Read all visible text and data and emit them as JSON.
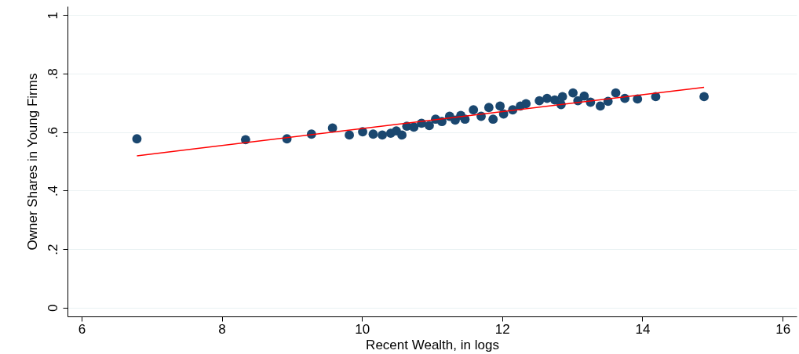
{
  "chart_data": {
    "type": "scatter",
    "xlabel": "Recent Wealth, in logs",
    "ylabel": "Owner Shares in Young Firms",
    "xlim": [
      5.8,
      16.2
    ],
    "ylim": [
      -0.03,
      1.03
    ],
    "xticks": [
      6,
      8,
      10,
      12,
      14,
      16
    ],
    "yticks": [
      0,
      {
        "value": 0.2,
        "label": ".2"
      },
      {
        "value": 0.4,
        "label": ".4"
      },
      {
        "value": 0.6,
        "label": ".6"
      },
      {
        "value": 0.8,
        "label": ".8"
      },
      1
    ],
    "grid": "y",
    "series": [
      {
        "marker": "circle",
        "color": "#1a476f",
        "x": [
          6.79,
          8.34,
          8.93,
          9.28,
          9.58,
          9.82,
          10.01,
          10.16,
          10.29,
          10.41,
          10.49,
          10.57,
          10.64,
          10.74,
          10.85,
          10.96,
          11.05,
          11.14,
          11.25,
          11.33,
          11.41,
          11.47,
          11.59,
          11.7,
          11.81,
          11.87,
          11.97,
          12.02,
          12.15,
          12.26,
          12.34,
          12.53,
          12.64,
          12.75,
          12.86,
          12.84,
          13.01,
          13.08,
          13.17,
          13.26,
          13.4,
          13.51,
          13.62,
          13.75,
          13.93,
          14.19,
          14.88
        ],
        "values": [
          0.577,
          0.574,
          0.577,
          0.593,
          0.614,
          0.59,
          0.601,
          0.593,
          0.59,
          0.596,
          0.604,
          0.59,
          0.62,
          0.617,
          0.63,
          0.622,
          0.644,
          0.636,
          0.654,
          0.641,
          0.657,
          0.644,
          0.676,
          0.654,
          0.684,
          0.644,
          0.689,
          0.662,
          0.676,
          0.689,
          0.697,
          0.707,
          0.715,
          0.71,
          0.721,
          0.694,
          0.734,
          0.707,
          0.723,
          0.702,
          0.689,
          0.705,
          0.734,
          0.715,
          0.713,
          0.721,
          0.721
        ]
      },
      {
        "type": "line",
        "color": "#ff0000",
        "x": [
          6.79,
          14.88
        ],
        "values": [
          0.519,
          0.753
        ]
      }
    ]
  }
}
